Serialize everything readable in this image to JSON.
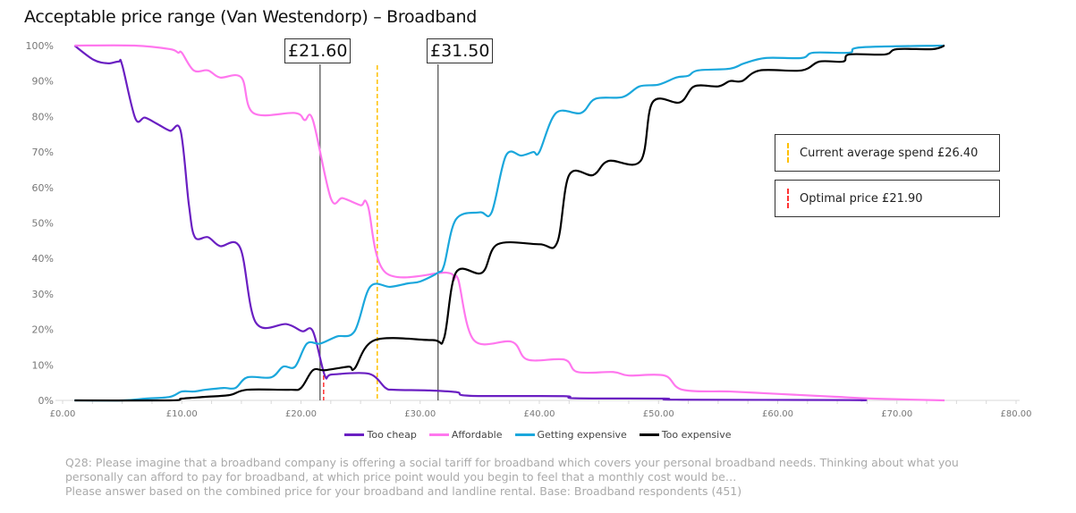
{
  "title": "Acceptable price range (Van Westendorp) – Broadband",
  "chart_data": {
    "type": "line",
    "title": "Acceptable price range (Van Westendorp) – Broadband",
    "xlim": [
      0,
      80
    ],
    "ylim": [
      0,
      100
    ],
    "x_ticks": [
      "£0.00",
      "£10.00",
      "£20.00",
      "£30.00",
      "£40.00",
      "£50.00",
      "£60.00",
      "£70.00",
      "£80.00"
    ],
    "y_ticks": [
      "0%",
      "10%",
      "20%",
      "30%",
      "40%",
      "50%",
      "60%",
      "70%",
      "80%",
      "90%",
      "100%"
    ],
    "grid": false,
    "legend": "bottom",
    "series": [
      {
        "name": "Too cheap",
        "color": "#6a1fc2",
        "points": [
          [
            1,
            100
          ],
          [
            2.6,
            96
          ],
          [
            3.8,
            95
          ],
          [
            4.7,
            95.5
          ],
          [
            5,
            94.5
          ],
          [
            6.1,
            79.5
          ],
          [
            6.9,
            79.7
          ],
          [
            7.9,
            78
          ],
          [
            9,
            76
          ],
          [
            9.9,
            76
          ],
          [
            10.6,
            55
          ],
          [
            11.1,
            46
          ],
          [
            12.2,
            46
          ],
          [
            13.2,
            43.5
          ],
          [
            14.9,
            43
          ],
          [
            16.2,
            22
          ],
          [
            18.8,
            21.5
          ],
          [
            20.1,
            19.5
          ],
          [
            21,
            19.5
          ],
          [
            22,
            7
          ],
          [
            22.6,
            7.3
          ],
          [
            25.7,
            7.5
          ],
          [
            27.1,
            3.5
          ],
          [
            27.8,
            3
          ],
          [
            30.8,
            2.8
          ],
          [
            33.1,
            2.3
          ],
          [
            34.2,
            1.3
          ],
          [
            42,
            1.2
          ],
          [
            43,
            0.6
          ],
          [
            50.5,
            0.5
          ],
          [
            51.5,
            0.2
          ],
          [
            66,
            0.1
          ],
          [
            67,
            0
          ]
        ]
      },
      {
        "name": "Affordable",
        "color": "#ff77ee",
        "points": [
          [
            1,
            100
          ],
          [
            6,
            100
          ],
          [
            9,
            99
          ],
          [
            9.7,
            98
          ],
          [
            10,
            98
          ],
          [
            11,
            93
          ],
          [
            12.2,
            93
          ],
          [
            13.2,
            91
          ],
          [
            15,
            91
          ],
          [
            16,
            81
          ],
          [
            19.5,
            81
          ],
          [
            20.3,
            79
          ],
          [
            21,
            79
          ],
          [
            22.5,
            57
          ],
          [
            23.5,
            57
          ],
          [
            25,
            55
          ],
          [
            25.6,
            55
          ],
          [
            27.1,
            36
          ],
          [
            32.2,
            36
          ],
          [
            32.8,
            34
          ],
          [
            33.2,
            34
          ],
          [
            34.5,
            17
          ],
          [
            37.7,
            16.5
          ],
          [
            39,
            11.5
          ],
          [
            42.1,
            11.5
          ],
          [
            43.2,
            8
          ],
          [
            46.2,
            8
          ],
          [
            47.5,
            7
          ],
          [
            50.5,
            7
          ],
          [
            52,
            3
          ],
          [
            56,
            2.5
          ],
          [
            59,
            2
          ],
          [
            62,
            1.5
          ],
          [
            65,
            1
          ],
          [
            68,
            0.5
          ],
          [
            74,
            0
          ]
        ]
      },
      {
        "name": "Getting expensive",
        "color": "#1aa7dc",
        "points": [
          [
            1,
            0
          ],
          [
            5,
            0
          ],
          [
            7,
            0.5
          ],
          [
            9,
            1
          ],
          [
            10,
            2.5
          ],
          [
            11,
            2.5
          ],
          [
            12,
            3
          ],
          [
            13.5,
            3.5
          ],
          [
            14.5,
            3.5
          ],
          [
            15.5,
            6.5
          ],
          [
            17.5,
            6.5
          ],
          [
            18.5,
            9.5
          ],
          [
            19.5,
            9.5
          ],
          [
            20.5,
            16
          ],
          [
            21.6,
            16
          ],
          [
            23,
            18
          ],
          [
            24.5,
            19.5
          ],
          [
            25.8,
            32
          ],
          [
            27.5,
            32
          ],
          [
            29,
            33
          ],
          [
            30,
            33.5
          ],
          [
            31.5,
            36
          ],
          [
            32,
            38
          ],
          [
            33,
            51
          ],
          [
            35,
            53
          ],
          [
            36,
            53
          ],
          [
            37.2,
            69
          ],
          [
            38.5,
            69
          ],
          [
            39.5,
            70
          ],
          [
            40,
            70
          ],
          [
            41.4,
            81
          ],
          [
            43.5,
            81
          ],
          [
            44.7,
            85
          ],
          [
            47,
            85.5
          ],
          [
            48.4,
            88.5
          ],
          [
            50,
            89
          ],
          [
            51.5,
            91
          ],
          [
            52.5,
            91.5
          ],
          [
            53.3,
            93
          ],
          [
            56,
            93.5
          ],
          [
            57.2,
            95
          ],
          [
            59,
            96.5
          ],
          [
            62,
            96.5
          ],
          [
            63,
            98
          ],
          [
            66,
            98
          ],
          [
            67,
            99.5
          ],
          [
            74,
            100
          ]
        ]
      },
      {
        "name": "Too expensive",
        "color": "#000000",
        "points": [
          [
            1,
            0
          ],
          [
            9,
            0
          ],
          [
            10,
            0.5
          ],
          [
            12,
            1
          ],
          [
            14,
            1.5
          ],
          [
            15.5,
            3
          ],
          [
            19,
            3
          ],
          [
            20,
            3.5
          ],
          [
            21,
            8.5
          ],
          [
            22,
            8.5
          ],
          [
            24,
            9.5
          ],
          [
            24.5,
            9
          ],
          [
            26.2,
            17
          ],
          [
            31,
            17
          ],
          [
            32,
            17.5
          ],
          [
            33,
            36
          ],
          [
            35.2,
            36
          ],
          [
            36.5,
            44
          ],
          [
            40,
            44
          ],
          [
            41.5,
            44.5
          ],
          [
            42.5,
            63.5
          ],
          [
            44.5,
            63.5
          ],
          [
            45.8,
            67.5
          ],
          [
            48.5,
            67.5
          ],
          [
            49.5,
            84
          ],
          [
            51.8,
            84
          ],
          [
            53,
            88.5
          ],
          [
            55,
            88.5
          ],
          [
            56,
            90
          ],
          [
            57,
            90
          ],
          [
            58.5,
            93
          ],
          [
            62,
            93
          ],
          [
            63.5,
            95.5
          ],
          [
            65.5,
            95.5
          ],
          [
            66,
            97.5
          ],
          [
            69,
            97.5
          ],
          [
            70,
            99
          ],
          [
            73,
            99
          ],
          [
            74,
            100
          ]
        ]
      }
    ],
    "markers": [
      {
        "label": "£21.60",
        "value": 21.6,
        "style": "solid",
        "color": "#555555"
      },
      {
        "label": "£31.50",
        "value": 31.5,
        "style": "solid",
        "color": "#555555"
      },
      {
        "label": "Current average spend £26.40",
        "value": 26.4,
        "style": "dashed",
        "color": "#ffc000"
      },
      {
        "label": "Optimal price £21.90",
        "value": 21.9,
        "style": "dashed",
        "color": "#ff3333"
      }
    ]
  },
  "footnote": [
    "Q28: Please imagine that a broadband company is offering a social tariff for broadband which covers your personal broadband needs. Thinking about what you personally can afford to pay for broadband, at which price point would you begin to feel that a monthly cost would be…",
    "Please answer based on the combined price for your broadband and landline rental. Base: Broadband respondents (451)"
  ]
}
